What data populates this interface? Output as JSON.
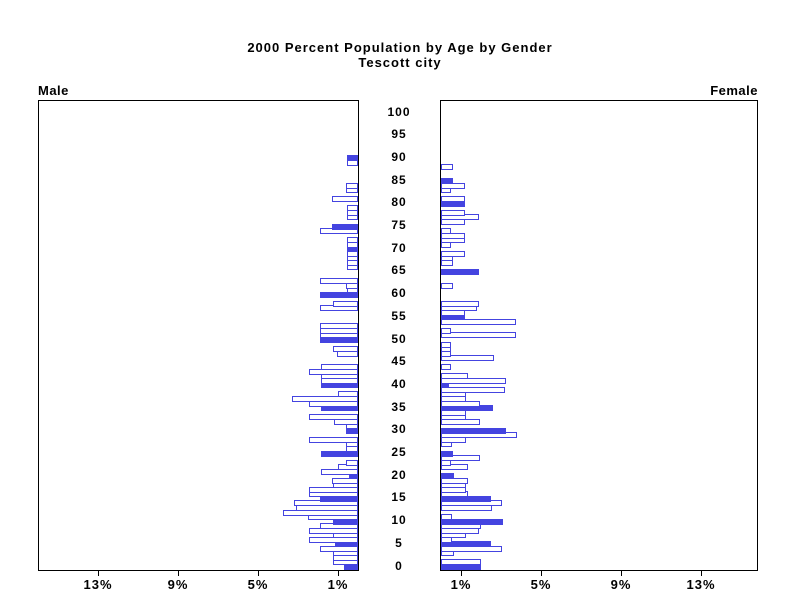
{
  "chart_data": {
    "type": "bar",
    "variant": "population-pyramid",
    "title": "2000 Percent Population by Age by Gender",
    "subtitle": "Tescott city",
    "left_label": "Male",
    "right_label": "Female",
    "age_axis": {
      "min": 0,
      "max": 100,
      "tick_step": 5
    },
    "pct_axis": {
      "tick_values": [
        1,
        5,
        9,
        13
      ],
      "tick_suffix": "%",
      "max_pct": 15
    },
    "bar_color": "#4444e0",
    "fill_rule": "bars for ages divisible by 5 are solid, others outlined",
    "series": [
      {
        "name": "Male",
        "side": "left",
        "ages_0_to_100_pct": [
          0.7,
          1.25,
          1.25,
          1.25,
          1.9,
          1.15,
          2.45,
          1.25,
          2.45,
          1.9,
          1.25,
          2.5,
          3.75,
          3.1,
          3.2,
          1.9,
          2.45,
          2.45,
          1.25,
          1.3,
          0.45,
          1.85,
          1.0,
          0.6,
          0,
          1.85,
          0.6,
          0.6,
          2.45,
          0,
          0.6,
          0.6,
          1.2,
          2.45,
          0,
          1.85,
          2.45,
          3.3,
          1.0,
          0,
          1.85,
          1.85,
          1.85,
          2.45,
          1.85,
          0,
          0,
          1.05,
          1.25,
          0,
          1.9,
          1.9,
          1.9,
          1.9,
          0,
          0,
          0,
          1.9,
          1.25,
          0,
          1.9,
          0.55,
          0.6,
          1.9,
          0,
          0,
          0.55,
          0.55,
          0.55,
          0.55,
          0.55,
          0.55,
          0.55,
          0,
          1.9,
          1.3,
          0,
          0.55,
          0.55,
          0.55,
          0,
          1.3,
          0,
          0.6,
          0.6,
          0,
          0,
          0,
          0,
          0.55,
          0.55,
          0,
          0,
          0,
          0,
          0,
          0,
          0,
          0,
          0,
          0
        ]
      },
      {
        "name": "Female",
        "side": "right",
        "ages_0_to_100_pct": [
          2.0,
          2.0,
          0,
          0.65,
          3.05,
          2.5,
          0.55,
          1.25,
          1.9,
          2.0,
          3.1,
          0.55,
          0,
          2.55,
          3.05,
          2.5,
          1.35,
          1.25,
          1.25,
          1.35,
          0.65,
          0,
          1.35,
          0.5,
          1.95,
          0.6,
          0,
          0.55,
          1.25,
          3.8,
          3.25,
          0,
          1.95,
          1.25,
          1.25,
          2.6,
          1.95,
          1.25,
          1.25,
          3.2,
          0.4,
          3.25,
          1.35,
          0,
          0.5,
          0,
          2.65,
          0.5,
          0.5,
          0.5,
          0,
          3.75,
          0.5,
          0,
          3.75,
          1.2,
          1.2,
          1.8,
          1.9,
          0,
          0,
          0,
          0.6,
          0,
          0,
          1.9,
          0,
          0.6,
          0.6,
          1.2,
          0,
          0.5,
          1.2,
          1.2,
          0.5,
          0,
          1.2,
          1.9,
          1.2,
          0,
          1.2,
          1.2,
          0,
          0.5,
          1.2,
          0.6,
          0,
          0,
          0.6,
          0,
          0,
          0,
          0,
          0,
          0,
          0,
          0,
          0,
          0,
          0,
          0
        ]
      }
    ]
  }
}
